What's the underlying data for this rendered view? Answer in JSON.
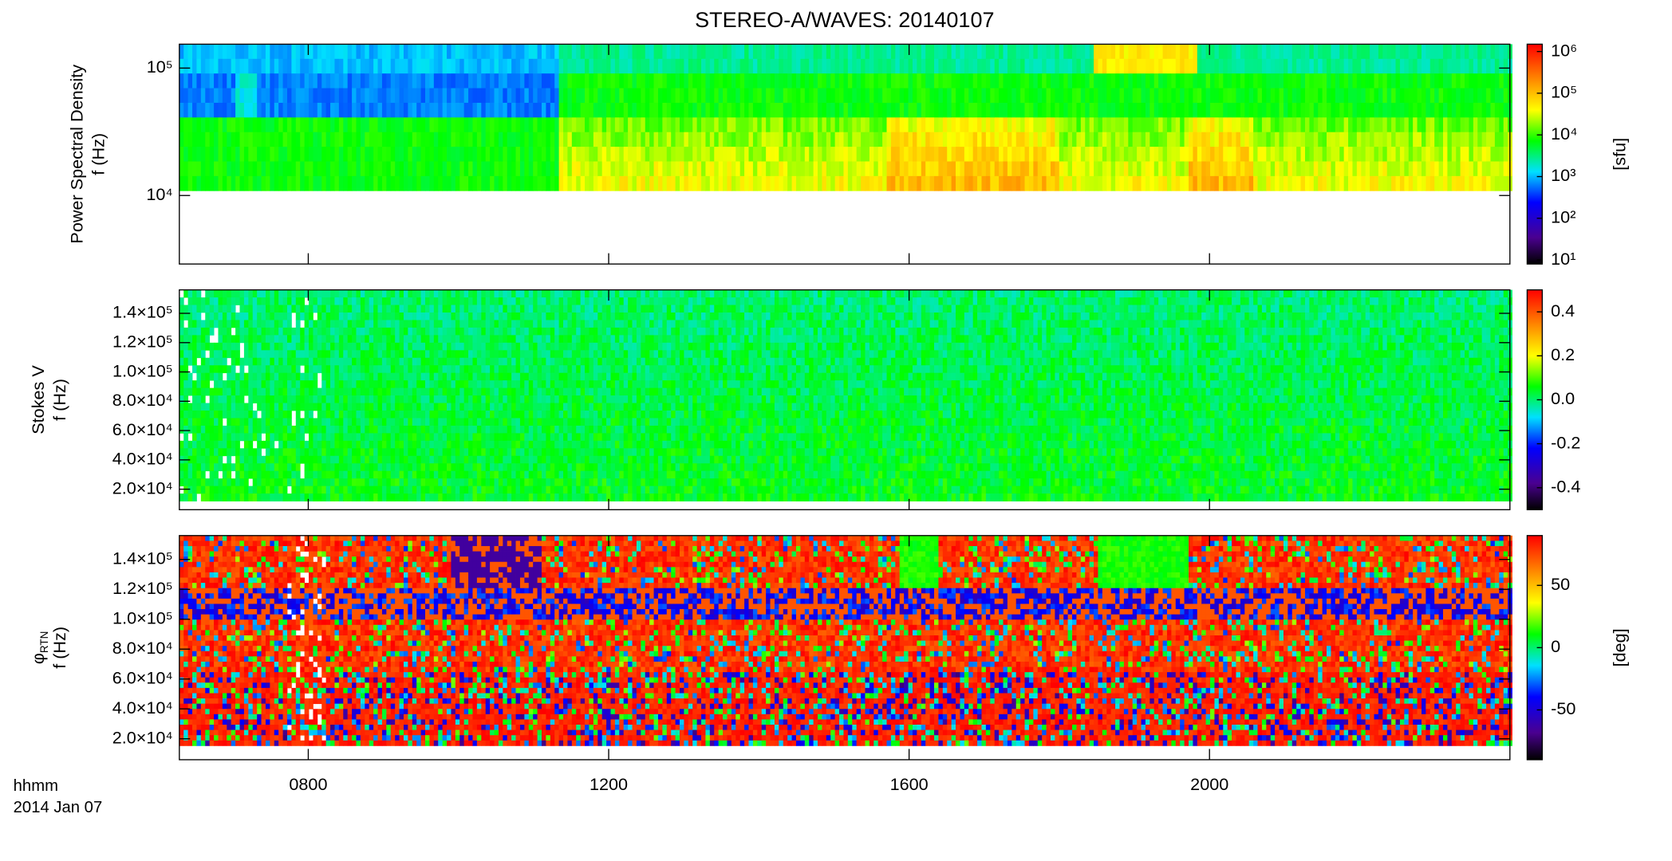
{
  "figure": {
    "title": "STEREO-A/WAVES: 20140107",
    "x_label": [
      "hhmm",
      "2014 Jan 07"
    ]
  },
  "chart_data": [
    {
      "type": "heatmap",
      "ylabel": [
        "Power Spectral Density",
        "f (Hz)"
      ],
      "yscale": "log",
      "ylim": [
        2900,
        154000
      ],
      "yticks": [
        {
          "value": 10000,
          "label": "10⁴"
        },
        {
          "value": 100000,
          "label": "10⁵"
        }
      ],
      "colorbar": {
        "scale": "log",
        "clim": [
          8,
          1500000
        ],
        "label": "[sfu]",
        "ticks": [
          {
            "value": 10,
            "label": "10¹"
          },
          {
            "value": 100,
            "label": "10²"
          },
          {
            "value": 1000,
            "label": "10³"
          },
          {
            "value": 10000,
            "label": "10⁴"
          },
          {
            "value": 100000,
            "label": "10⁵"
          },
          {
            "value": 1000000,
            "label": "10⁶"
          }
        ]
      }
    },
    {
      "type": "heatmap",
      "ylabel": [
        "Stokes V",
        "f (Hz)"
      ],
      "yscale": "linear",
      "ylim": [
        6000,
        156000
      ],
      "yticks": [
        {
          "value": 20000,
          "label": "2.0×10⁴"
        },
        {
          "value": 40000,
          "label": "4.0×10⁴"
        },
        {
          "value": 60000,
          "label": "6.0×10⁴"
        },
        {
          "value": 80000,
          "label": "8.0×10⁴"
        },
        {
          "value": 100000,
          "label": "1.0×10⁵"
        },
        {
          "value": 120000,
          "label": "1.2×10⁵"
        },
        {
          "value": 140000,
          "label": "1.4×10⁵"
        }
      ],
      "colorbar": {
        "scale": "linear",
        "clim": [
          -0.5,
          0.5
        ],
        "ticks": [
          -0.4,
          -0.2,
          {
            "value": 0,
            "label": "0.0"
          },
          0.2,
          0.4
        ]
      }
    },
    {
      "type": "heatmap",
      "ylabel": [
        "φ",
        "f (Hz)"
      ],
      "ylabel_sub": "RTN",
      "yscale": "linear",
      "ylim": [
        6000,
        156000
      ],
      "yticks": [
        {
          "value": 20000,
          "label": "2.0×10⁴"
        },
        {
          "value": 40000,
          "label": "4.0×10⁴"
        },
        {
          "value": 60000,
          "label": "6.0×10⁴"
        },
        {
          "value": 80000,
          "label": "8.0×10⁴"
        },
        {
          "value": 100000,
          "label": "1.0×10⁵"
        },
        {
          "value": 120000,
          "label": "1.2×10⁵"
        },
        {
          "value": 140000,
          "label": "1.4×10⁵"
        }
      ],
      "xlim": [
        377,
        1440
      ],
      "xticks": [
        {
          "value": 480,
          "label": "0800"
        },
        {
          "value": 720,
          "label": "1200"
        },
        {
          "value": 960,
          "label": "1600"
        },
        {
          "value": 1200,
          "label": "2000"
        }
      ],
      "colorbar": {
        "scale": "linear",
        "clim": [
          -90,
          90
        ],
        "label": "[deg]",
        "ticks": [
          -50,
          0,
          50
        ]
      }
    }
  ]
}
